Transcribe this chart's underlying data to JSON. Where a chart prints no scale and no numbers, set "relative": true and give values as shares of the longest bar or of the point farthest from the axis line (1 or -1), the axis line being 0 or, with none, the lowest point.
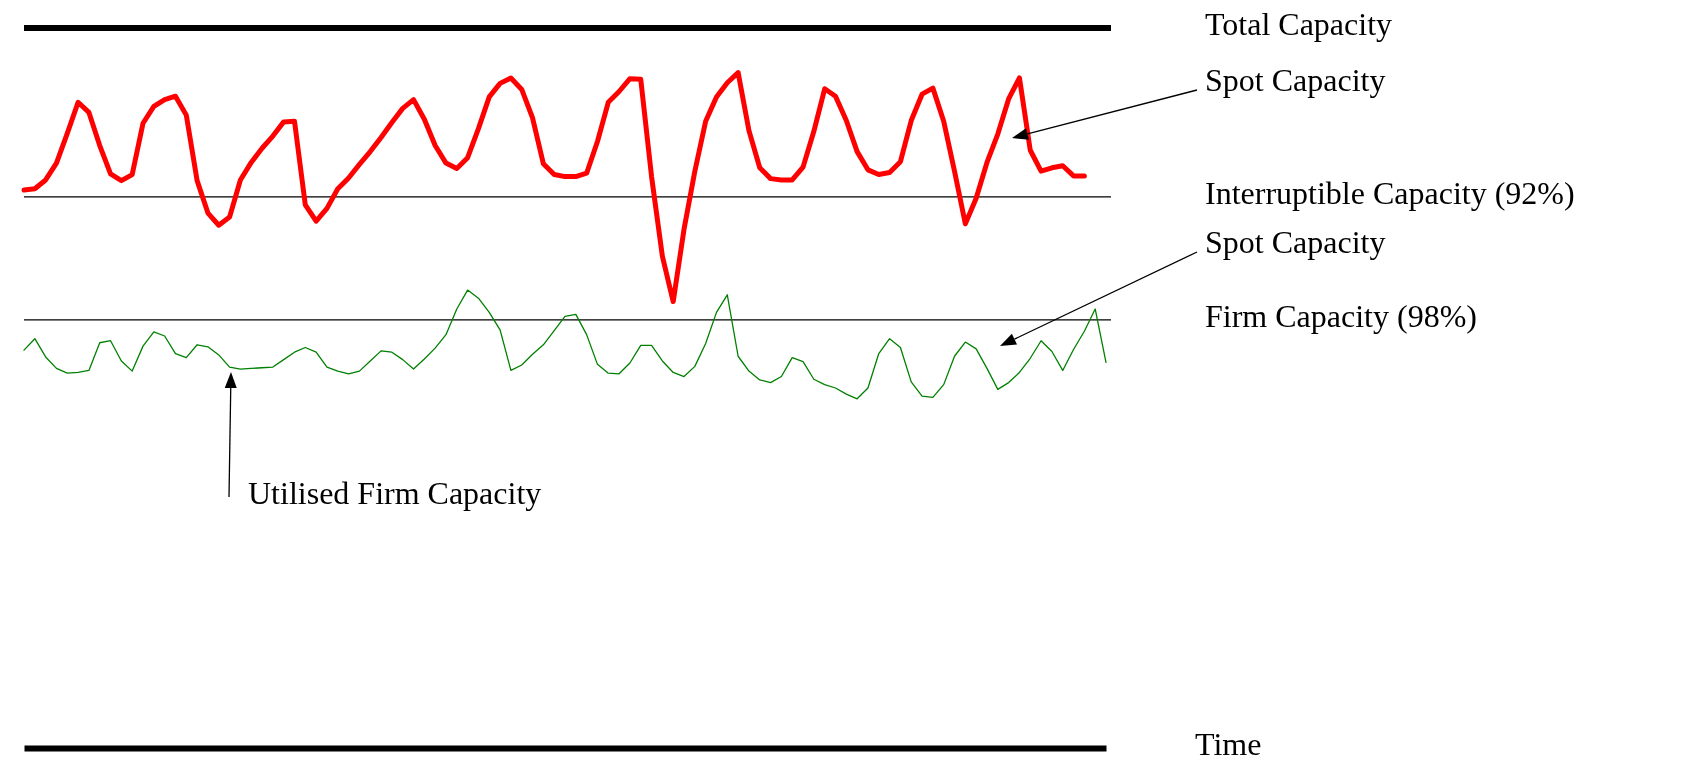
{
  "chart_data": {
    "type": "line",
    "relative": true,
    "xlabel": "Time",
    "tick_labels": false,
    "categories": [
      null,
      null,
      null,
      null,
      null,
      null,
      null,
      null,
      null,
      null,
      null,
      null,
      null,
      null,
      null,
      null,
      null,
      null,
      null,
      null,
      null,
      null,
      null,
      null,
      null,
      null,
      null,
      null,
      null,
      null,
      null,
      null,
      null,
      null,
      null,
      null,
      null,
      null,
      null,
      null,
      null,
      null,
      null,
      null,
      null,
      null,
      null,
      null,
      null,
      null,
      null,
      null,
      null,
      null,
      null,
      null,
      null,
      null,
      null,
      null,
      null,
      null,
      null,
      null,
      null,
      null,
      null,
      null,
      null,
      null,
      null,
      null,
      null,
      null,
      null,
      null,
      null,
      null,
      null,
      null,
      null,
      null,
      null,
      null,
      null,
      null,
      null,
      null,
      null,
      null,
      null,
      null,
      null,
      null,
      null,
      null,
      null,
      null,
      null,
      null,
      null
    ],
    "series": [
      {
        "color": "#ff0000",
        "values": [
          0.826,
          0.828,
          0.841,
          0.866,
          0.91,
          0.956,
          0.941,
          0.892,
          0.85,
          0.84,
          0.849,
          0.925,
          0.95,
          0.96,
          0.965,
          0.937,
          0.84,
          0.792,
          0.774,
          0.786,
          0.841,
          0.867,
          0.888,
          0.906,
          0.927,
          0.928,
          0.804,
          0.78,
          0.799,
          0.828,
          0.844,
          0.864,
          0.883,
          0.904,
          0.926,
          0.947,
          0.96,
          0.931,
          0.892,
          0.866,
          0.858,
          0.874,
          0.917,
          0.964,
          0.984,
          0.992,
          0.975,
          0.933,
          0.865,
          0.849,
          0.846,
          0.846,
          0.851,
          0.898,
          0.956,
          0.972,
          0.991,
          0.99,
          0.846,
          0.728,
          0.661,
          0.768,
          0.854,
          0.928,
          0.964,
          0.985,
          1,
          0.914,
          0.859,
          0.843,
          0.841,
          0.841,
          0.86,
          0.913,
          0.976,
          0.965,
          0.929,
          0.883,
          0.856,
          0.849,
          0.852,
          0.868,
          0.929,
          0.968,
          0.977,
          0.928,
          0.854,
          0.776,
          0.814,
          0.867,
          0.909,
          0.961,
          0.992,
          0.885,
          0.854,
          0.859,
          0.862,
          0.847,
          0.847,
          null,
          null
        ]
      },
      {
        "color": "#008000",
        "values": [
          0.589,
          0.606,
          0.579,
          0.562,
          0.555,
          0.556,
          0.559,
          0.6,
          0.603,
          0.573,
          0.558,
          0.595,
          0.616,
          0.61,
          0.584,
          0.578,
          0.597,
          0.594,
          0.582,
          0.564,
          0.561,
          0.562,
          0.563,
          0.564,
          0.575,
          0.586,
          0.593,
          0.586,
          0.564,
          0.558,
          0.554,
          0.558,
          0.573,
          0.588,
          0.586,
          0.575,
          0.561,
          0.576,
          0.592,
          0.612,
          0.65,
          0.678,
          0.666,
          0.645,
          0.619,
          0.559,
          0.567,
          0.583,
          0.597,
          0.618,
          0.639,
          0.642,
          0.612,
          0.568,
          0.555,
          0.554,
          0.57,
          0.596,
          0.596,
          0.573,
          0.556,
          0.55,
          0.565,
          0.599,
          0.645,
          0.671,
          0.58,
          0.558,
          0.545,
          0.541,
          0.55,
          0.578,
          0.572,
          0.546,
          0.538,
          0.533,
          0.524,
          0.517,
          0.533,
          0.584,
          0.606,
          0.593,
          0.542,
          0.521,
          0.519,
          0.538,
          0.58,
          0.601,
          0.591,
          0.562,
          0.531,
          0.541,
          0.556,
          0.577,
          0.603,
          0.587,
          0.559,
          0.59,
          0.617,
          0.65,
          0.571
        ]
      }
    ],
    "ref_lines": [
      {
        "axis": "y",
        "value": 1.066,
        "label": "Total Capacity",
        "color": "#000000"
      },
      {
        "axis": "y",
        "value": 0.816,
        "label": "Interruptible Capacity (92%)",
        "color": "#000000"
      },
      {
        "axis": "y",
        "value": 0.634,
        "label": "Firm Capacity (98%)",
        "color": "#000000"
      }
    ],
    "annotations": [
      "Spot Capacity",
      "Spot Capacity",
      "Utilised Firm Capacity"
    ]
  }
}
